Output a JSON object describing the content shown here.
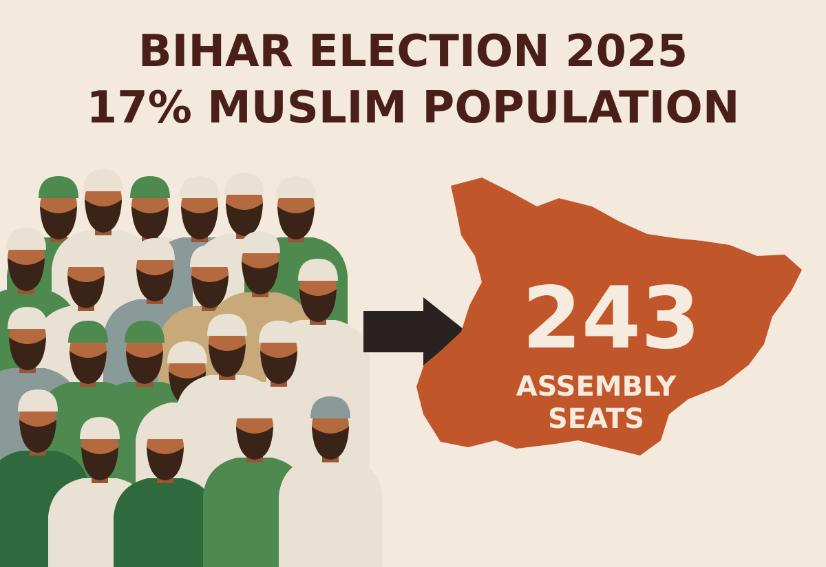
{
  "header": {
    "title_line1": "BIHAR ELECTION 2025",
    "title_line2": "17% MUSLIM POPULATION"
  },
  "map": {
    "seats": "243",
    "label_line1": "ASSEMBLY",
    "label_line2": "SEATS"
  }
}
